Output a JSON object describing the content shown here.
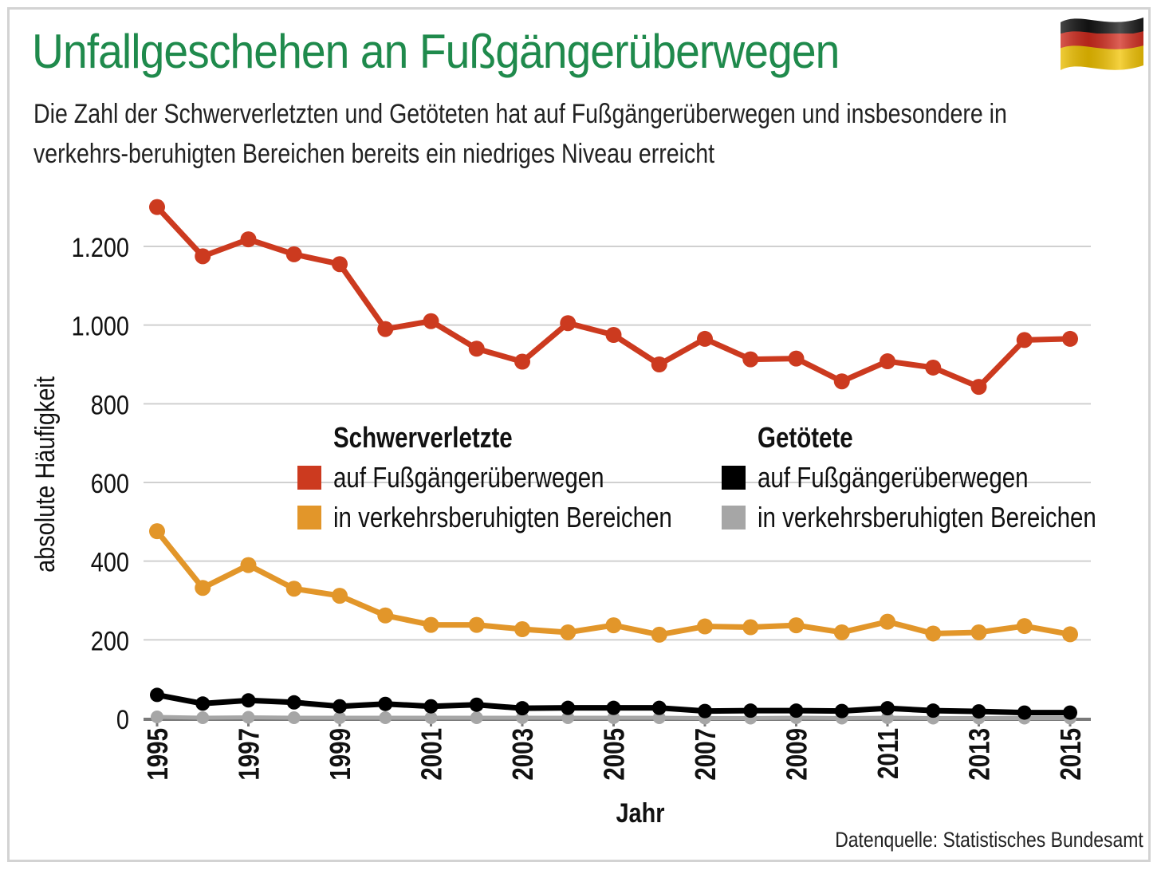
{
  "title": "Unfallgeschehen an Fußgängerüberwegen",
  "subtitle": "Die Zahl der Schwerverletzten und Getöteten hat auf Fußgängerüberwegen und insbesondere in verkehrs-beruhigten Bereichen bereits ein niedriges Niveau erreicht",
  "source": "Datenquelle: Statistisches Bundesamt",
  "flag_icon": "german-flag-icon",
  "colors": {
    "title": "#1f8a4c",
    "red": "#cc3a1f",
    "orange": "#e2962a",
    "black": "#000000",
    "gray": "#a6a6a6",
    "grid": "#d0d0d0"
  },
  "chart_data": {
    "type": "line",
    "xlabel": "Jahr",
    "ylabel": "absolute Häufigkeit",
    "ylim": [
      0,
      1300
    ],
    "yticks": [
      0,
      200,
      400,
      600,
      800,
      1000,
      1200
    ],
    "ytick_labels": [
      "0",
      "200",
      "400",
      "600",
      "800",
      "1.000",
      "1.200"
    ],
    "xtick_labels": [
      "1995",
      "1997",
      "1999",
      "2001",
      "2003",
      "2005",
      "2007",
      "2009",
      "2011",
      "2013",
      "2015"
    ],
    "grid": true,
    "x": [
      1995,
      1996,
      1997,
      1998,
      1999,
      2000,
      2001,
      2002,
      2003,
      2004,
      2005,
      2006,
      2007,
      2008,
      2009,
      2010,
      2011,
      2012,
      2013,
      2014,
      2015
    ],
    "legend_groups": [
      "Schwerverletzte",
      "Getötete"
    ],
    "series": [
      {
        "group": "Schwerverletzte",
        "name": "auf Fußgängerüberwegen",
        "color": "#cc3a1f",
        "values": [
          1300,
          1175,
          1218,
          1180,
          1155,
          990,
          1010,
          940,
          907,
          1005,
          975,
          900,
          965,
          913,
          915,
          857,
          908,
          892,
          843,
          962,
          965
        ]
      },
      {
        "group": "Schwerverletzte",
        "name": "in verkehrsberuhigten Bereichen",
        "color": "#e2962a",
        "values": [
          476,
          332,
          390,
          330,
          312,
          262,
          238,
          238,
          227,
          219,
          237,
          213,
          234,
          232,
          237,
          219,
          246,
          216,
          219,
          235,
          214
        ]
      },
      {
        "group": "Getötete",
        "name": "auf Fußgängerüberwegen",
        "color": "#000000",
        "values": [
          60,
          38,
          46,
          41,
          31,
          37,
          31,
          35,
          26,
          27,
          27,
          27,
          19,
          20,
          20,
          19,
          26,
          20,
          18,
          15,
          15
        ]
      },
      {
        "group": "Getötete",
        "name": "in verkehrsberuhigten Bereichen",
        "color": "#a6a6a6",
        "values": [
          4,
          2,
          3,
          2,
          2,
          2,
          2,
          2,
          2,
          2,
          2,
          2,
          1,
          1,
          2,
          1,
          2,
          1,
          1,
          1,
          1
        ]
      }
    ]
  }
}
